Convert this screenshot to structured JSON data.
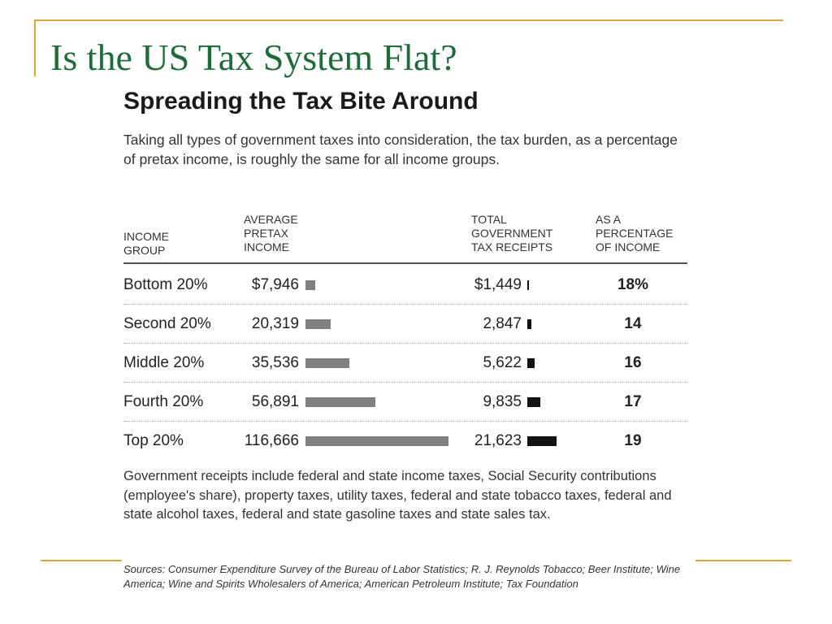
{
  "slide": {
    "title": "Is the US Tax System Flat?",
    "accent_color": "#d9a93a",
    "title_color": "#1f6b3a"
  },
  "chart_data": {
    "type": "table",
    "title": "Spreading the Tax Bite Around",
    "subtitle": "Taking all types of government taxes into consideration, the tax burden, as a percentage of pretax income, is roughly the same for all income groups.",
    "columns": {
      "group": "INCOME\nGROUP",
      "income": "AVERAGE\nPRETAX\nINCOME",
      "receipts": "TOTAL\nGOVERNMENT\nTAX RECEIPTS",
      "percent": "AS A\nPERCENTAGE\nOF INCOME"
    },
    "rows": [
      {
        "group": "Bottom 20%",
        "income_label": "$7,946",
        "income": 7946,
        "receipts_label": "$1,449",
        "receipts": 1449,
        "percent_label": "18%",
        "percent": 18
      },
      {
        "group": "Second 20%",
        "income_label": "20,319",
        "income": 20319,
        "receipts_label": "2,847",
        "receipts": 2847,
        "percent_label": "14",
        "percent": 14
      },
      {
        "group": "Middle 20%",
        "income_label": "35,536",
        "income": 35536,
        "receipts_label": "5,622",
        "receipts": 5622,
        "percent_label": "16",
        "percent": 16
      },
      {
        "group": "Fourth 20%",
        "income_label": "56,891",
        "income": 56891,
        "receipts_label": "9,835",
        "receipts": 9835,
        "percent_label": "17",
        "percent": 17
      },
      {
        "group": "Top 20%",
        "income_label": "116,666",
        "income": 116666,
        "receipts_label": "21,623",
        "receipts": 21623,
        "percent_label": "19",
        "percent": 19
      }
    ],
    "income_bar_color": "#808080",
    "receipts_bar_color": "#111111",
    "notes": "Government receipts include federal and state income taxes, Social Security contributions (employee's share), property taxes, utility taxes, federal and state tobacco taxes, federal and state alcohol taxes, federal and state gasoline taxes and state sales tax.",
    "sources": "Sources: Consumer Expenditure Survey of the Bureau of Labor Statistics; R. J. Reynolds Tobacco; Beer Institute; Wine America; Wine and Spirits Wholesalers of America; American Petroleum Institute; Tax Foundation"
  }
}
